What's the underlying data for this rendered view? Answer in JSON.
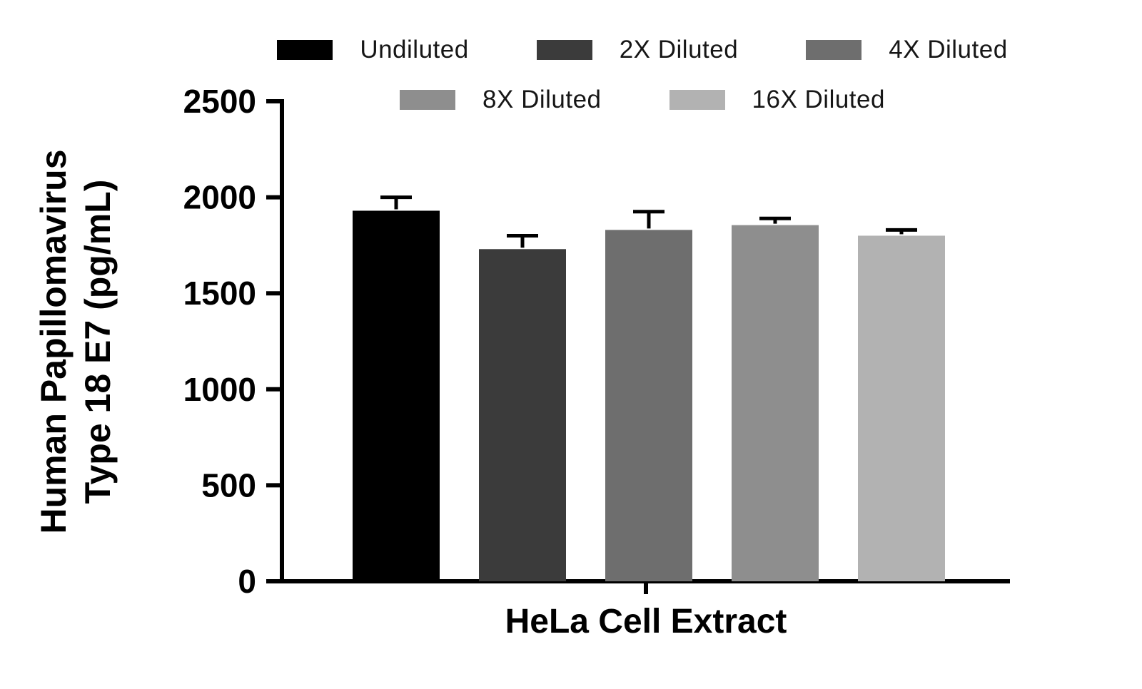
{
  "chart_data": {
    "type": "bar",
    "title": "",
    "ylabel_line1": "Human Papillomavirus",
    "ylabel_line2": "Type 18 E7 (pg/mL)",
    "xlabel": "HeLa Cell Extract",
    "categories": [
      "HeLa Cell Extract"
    ],
    "ylim": [
      0,
      2500
    ],
    "yticks": [
      0,
      500,
      1000,
      1500,
      2000,
      2500
    ],
    "grid": false,
    "legend_position": "top",
    "series": [
      {
        "name": "Undiluted",
        "color": "#000000",
        "values": [
          1930
        ],
        "errors": [
          70
        ]
      },
      {
        "name": "2X Diluted",
        "color": "#3b3b3b",
        "values": [
          1730
        ],
        "errors": [
          70
        ]
      },
      {
        "name": "4X Diluted",
        "color": "#6e6e6e",
        "values": [
          1830
        ],
        "errors": [
          95
        ]
      },
      {
        "name": "8X Diluted",
        "color": "#8e8e8e",
        "values": [
          1855
        ],
        "errors": [
          35
        ]
      },
      {
        "name": "16X Diluted",
        "color": "#b2b2b2",
        "values": [
          1800
        ],
        "errors": [
          30
        ]
      }
    ]
  }
}
